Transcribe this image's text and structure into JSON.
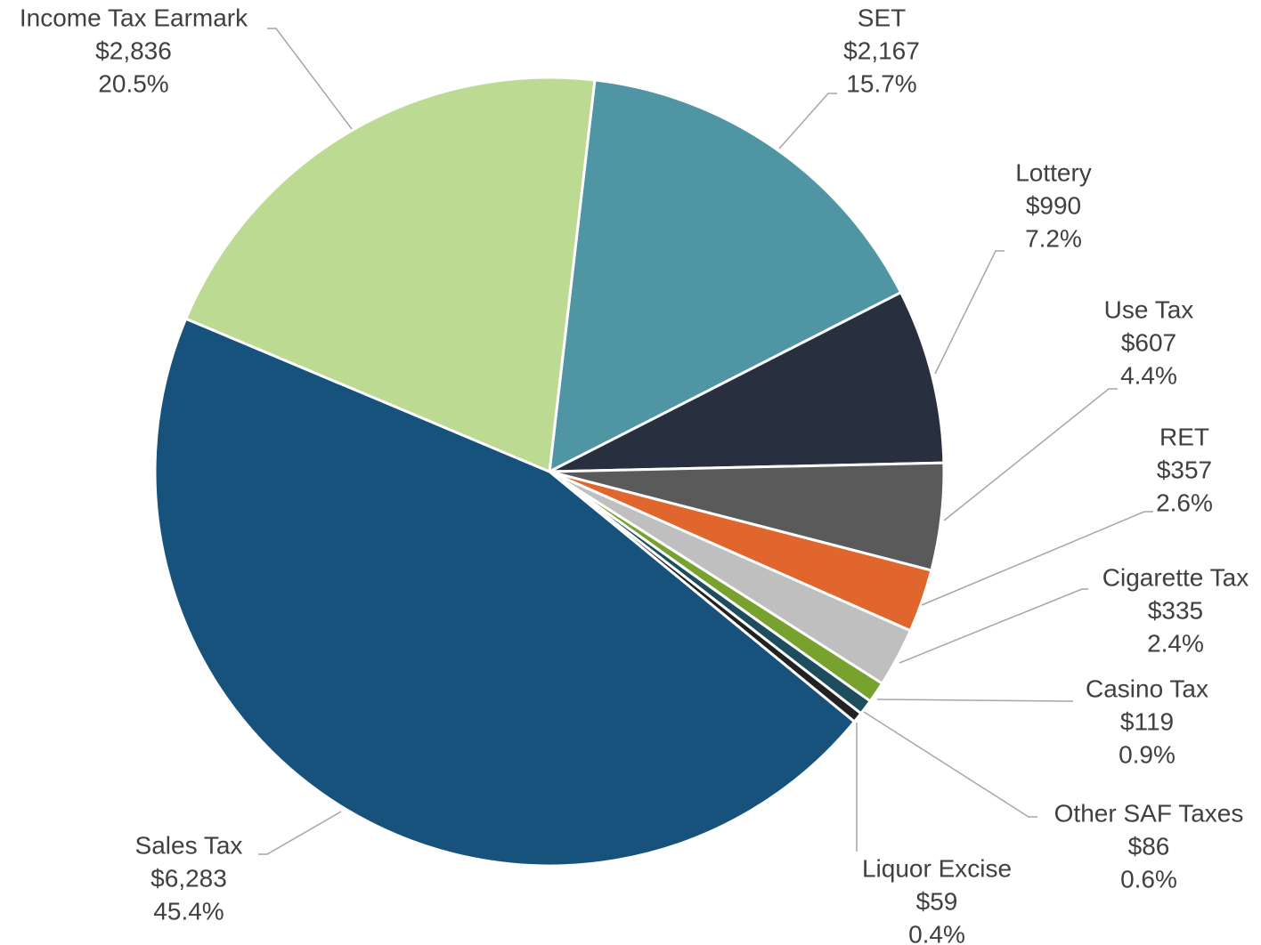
{
  "chart_data": {
    "type": "pie",
    "categories": [
      "SET",
      "Lottery",
      "Use Tax",
      "RET",
      "Cigarette Tax",
      "Casino Tax",
      "Other SAF Taxes",
      "Liquor Excise",
      "Sales Tax",
      "Income Tax Earmark"
    ],
    "values": [
      2167,
      990,
      607,
      357,
      335,
      119,
      86,
      59,
      6283,
      2836
    ],
    "value_labels": [
      "$2,167",
      "$990",
      "$607",
      "$357",
      "$335",
      "$119",
      "$86",
      "$59",
      "$6,283",
      "$2,836"
    ],
    "percents": [
      15.7,
      7.2,
      4.4,
      2.6,
      2.4,
      0.9,
      0.6,
      0.4,
      45.4,
      20.5
    ],
    "percent_labels": [
      "15.7%",
      "7.2%",
      "4.4%",
      "2.6%",
      "2.4%",
      "0.9%",
      "0.6%",
      "0.4%",
      "45.4%",
      "20.5%"
    ],
    "colors": [
      "#4f95a3",
      "#283040",
      "#5a5a5a",
      "#e0662d",
      "#bfbfbf",
      "#77a22e",
      "#1e4e5e",
      "#222222",
      "#17527c",
      "#bcda92"
    ]
  }
}
